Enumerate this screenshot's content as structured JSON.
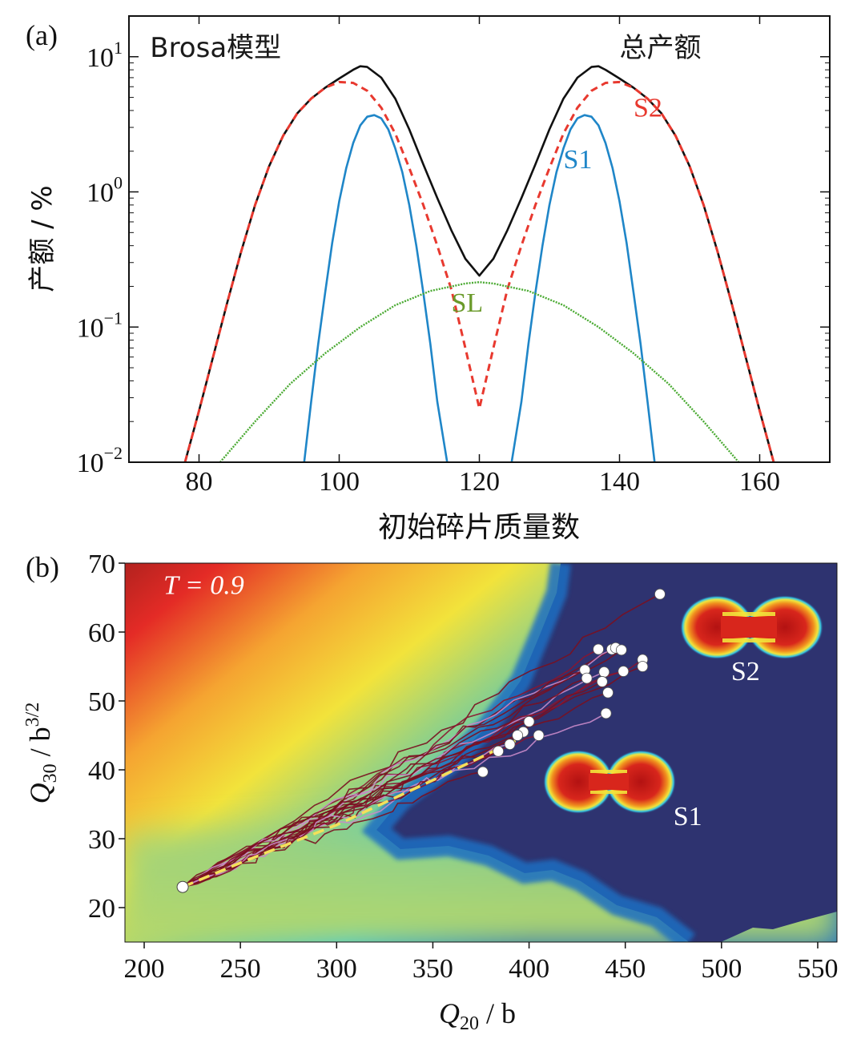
{
  "chart_data": [
    {
      "panel_label": "(a)",
      "type": "line",
      "xlabel": "初始碎片质量数",
      "ylabel": "产额 / %",
      "xlim": [
        70,
        170
      ],
      "ylim": [
        0.01,
        20
      ],
      "yscale": "log",
      "grid": false,
      "x_ticks": [
        {
          "v": 80,
          "label": "80"
        },
        {
          "v": 100,
          "label": "100"
        },
        {
          "v": 120,
          "label": "120"
        },
        {
          "v": 140,
          "label": "140"
        },
        {
          "v": 160,
          "label": "160"
        }
      ],
      "y_ticks": [
        {
          "v": 10,
          "base": "10",
          "exp": "1"
        },
        {
          "v": 1,
          "base": "10",
          "exp": "0"
        },
        {
          "v": 0.1,
          "base": "10",
          "exp": "−1"
        },
        {
          "v": 0.01,
          "base": "10",
          "exp": "−2"
        }
      ],
      "annotations": [
        {
          "text": "Brosa模型",
          "x": 73,
          "y": 10,
          "color": "#1a1a1a"
        },
        {
          "text": "总产额",
          "x": 140,
          "y": 10,
          "color": "#1a1a1a"
        },
        {
          "text": "S2",
          "x": 142,
          "y": 3.6,
          "color": "#e8392f"
        },
        {
          "text": "S1",
          "x": 132,
          "y": 1.5,
          "color": "#1f86c8"
        },
        {
          "text": "SL",
          "x": 116,
          "y": 0.13,
          "color": "#6a9a2a"
        }
      ],
      "series": [
        {
          "color": "#111111",
          "style": "solid",
          "x": [
            78,
            80,
            82,
            84,
            86,
            88,
            90,
            92,
            94,
            96,
            98,
            100,
            102,
            103,
            104,
            106,
            108,
            110,
            112,
            114,
            116,
            118,
            120,
            122,
            124,
            126,
            128,
            130,
            132,
            134,
            136,
            137,
            138,
            140,
            142,
            144,
            146,
            148,
            150,
            152,
            154,
            156,
            158,
            160,
            162
          ],
          "y": [
            0.01,
            0.024,
            0.06,
            0.15,
            0.36,
            0.8,
            1.55,
            2.6,
            3.8,
            4.9,
            5.9,
            6.9,
            8.0,
            8.5,
            8.4,
            7.0,
            4.9,
            2.9,
            1.6,
            0.9,
            0.52,
            0.32,
            0.24,
            0.32,
            0.52,
            0.9,
            1.6,
            2.9,
            4.9,
            7.0,
            8.4,
            8.5,
            8.0,
            6.9,
            5.9,
            4.9,
            3.8,
            2.6,
            1.55,
            0.8,
            0.36,
            0.15,
            0.06,
            0.024,
            0.01
          ]
        },
        {
          "color": "#e8392f",
          "style": "dashed",
          "x": [
            78,
            80,
            82,
            84,
            86,
            88,
            90,
            92,
            94,
            96,
            98,
            100,
            102,
            104,
            106,
            108,
            110,
            112,
            114,
            116,
            118,
            120,
            122,
            124,
            126,
            128,
            130,
            132,
            134,
            136,
            138,
            140,
            142,
            144,
            146,
            148,
            150,
            152,
            154,
            156,
            158,
            160,
            162
          ],
          "y": [
            0.01,
            0.024,
            0.06,
            0.15,
            0.36,
            0.8,
            1.55,
            2.6,
            3.8,
            4.9,
            5.9,
            6.5,
            6.4,
            5.6,
            4.2,
            2.7,
            1.5,
            0.8,
            0.4,
            0.19,
            0.07,
            0.025,
            0.07,
            0.19,
            0.4,
            0.8,
            1.5,
            2.7,
            4.2,
            5.6,
            6.4,
            6.5,
            5.9,
            4.9,
            3.8,
            2.6,
            1.55,
            0.8,
            0.36,
            0.15,
            0.06,
            0.024,
            0.01
          ]
        },
        {
          "color": "#1f86c8",
          "style": "solid",
          "x": [
            95,
            96,
            97,
            98,
            99,
            100,
            101,
            102,
            103,
            104,
            105,
            106,
            107,
            108,
            109,
            110,
            111,
            112,
            113,
            114,
            115.4
          ],
          "y": [
            0.01,
            0.028,
            0.075,
            0.18,
            0.42,
            0.85,
            1.5,
            2.3,
            3.1,
            3.6,
            3.7,
            3.5,
            2.9,
            2.1,
            1.4,
            0.8,
            0.4,
            0.18,
            0.075,
            0.028,
            0.01
          ]
        },
        {
          "color": "#1f86c8",
          "style": "solid",
          "x": [
            124.6,
            126,
            127,
            128,
            129,
            130,
            131,
            132,
            133,
            134,
            135,
            136,
            137,
            138,
            139,
            140,
            141,
            142,
            143,
            144,
            145
          ],
          "y": [
            0.01,
            0.028,
            0.075,
            0.18,
            0.4,
            0.8,
            1.4,
            2.1,
            2.9,
            3.5,
            3.7,
            3.6,
            3.1,
            2.3,
            1.5,
            0.85,
            0.42,
            0.18,
            0.075,
            0.028,
            0.01
          ]
        },
        {
          "color": "#4aaa32",
          "style": "dotted",
          "x": [
            83,
            88,
            93,
            98,
            103,
            108,
            113,
            118,
            120,
            122,
            127,
            132,
            137,
            142,
            147,
            152,
            157
          ],
          "y": [
            0.01,
            0.02,
            0.038,
            0.064,
            0.1,
            0.145,
            0.185,
            0.21,
            0.215,
            0.21,
            0.185,
            0.145,
            0.1,
            0.064,
            0.038,
            0.02,
            0.01
          ]
        }
      ]
    },
    {
      "panel_label": "(b)",
      "type": "heatmap",
      "xlabel": "Q20 / b",
      "ylabel": "Q30 / b3/2",
      "xlim": [
        190,
        560
      ],
      "ylim": [
        15,
        70
      ],
      "grid": false,
      "x_ticks": [
        "200",
        "250",
        "300",
        "350",
        "400",
        "450",
        "500",
        "550"
      ],
      "y_ticks": [
        "20",
        "30",
        "40",
        "50",
        "60",
        "70"
      ],
      "x_tick_values": [
        200,
        250,
        300,
        350,
        400,
        450,
        500,
        550
      ],
      "y_tick_values": [
        20,
        30,
        40,
        50,
        60,
        70
      ],
      "annotations": [
        {
          "text": "T = 0.9",
          "x": 210,
          "y": 65.5,
          "color": "#ffffff"
        },
        {
          "text": "S2",
          "x": 505,
          "y": 53,
          "color": "#ffffff"
        },
        {
          "text": "S1",
          "x": 475,
          "y": 32,
          "color": "#ffffff"
        }
      ],
      "start_point": {
        "x": 220,
        "y": 23
      },
      "mean_path": {
        "color": "#f4e05a",
        "x": [
          220,
          250,
          300,
          350,
          395
        ],
        "y": [
          23,
          26.5,
          32,
          38.5,
          44.5
        ]
      },
      "trajectory_end_points": [
        {
          "x": 468,
          "y": 65.5
        },
        {
          "x": 436,
          "y": 57.5
        },
        {
          "x": 443,
          "y": 57.5
        },
        {
          "x": 445,
          "y": 57.7
        },
        {
          "x": 448,
          "y": 57.4
        },
        {
          "x": 459,
          "y": 56.0
        },
        {
          "x": 459,
          "y": 55.0
        },
        {
          "x": 429,
          "y": 54.5
        },
        {
          "x": 439,
          "y": 54.2
        },
        {
          "x": 449,
          "y": 54.3
        },
        {
          "x": 430,
          "y": 53.3
        },
        {
          "x": 438,
          "y": 52.8
        },
        {
          "x": 441,
          "y": 51.2
        },
        {
          "x": 440,
          "y": 48.2
        },
        {
          "x": 400,
          "y": 47.0
        },
        {
          "x": 397,
          "y": 45.5
        },
        {
          "x": 394,
          "y": 45.0
        },
        {
          "x": 405,
          "y": 45.0
        },
        {
          "x": 390,
          "y": 43.7
        },
        {
          "x": 384,
          "y": 42.7
        },
        {
          "x": 376,
          "y": 39.7
        }
      ],
      "colorscale": [
        "#2e3370",
        "#1f6ec2",
        "#32c6e6",
        "#8cd08a",
        "#f2e33b",
        "#f5a431",
        "#e42b26",
        "#6b1614"
      ]
    }
  ]
}
